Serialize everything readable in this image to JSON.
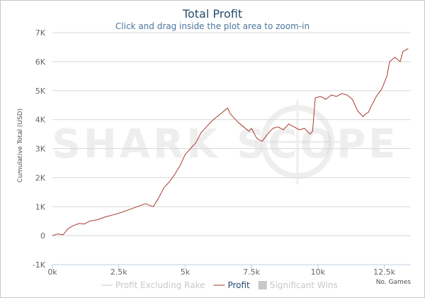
{
  "chart_data": {
    "type": "line",
    "title": "Total Profit",
    "subtitle": "Click and drag inside the plot area to zoom-in",
    "xlabel": "No. Games",
    "ylabel": "Cumulative Total (USD)",
    "watermark": "SHARK SCOPE",
    "xlim": [
      0,
      13500
    ],
    "ylim": [
      -1000,
      7000
    ],
    "x_ticks": [
      0,
      2500,
      5000,
      7500,
      10000,
      12500
    ],
    "x_tick_labels": [
      "0k",
      "2.5k",
      "5k",
      "7.5k",
      "10k",
      "12.5k"
    ],
    "y_ticks": [
      -1000,
      0,
      1000,
      2000,
      3000,
      4000,
      5000,
      6000,
      7000
    ],
    "y_tick_labels": [
      "-1K",
      "0",
      "1K",
      "2K",
      "3K",
      "4K",
      "5K",
      "6K",
      "7K"
    ],
    "grid": true,
    "legend": "bottom",
    "legend_items": [
      {
        "label": "Profit Excluding Rake",
        "color": "#c8c8c8",
        "active": false,
        "kind": "line"
      },
      {
        "label": "Profit",
        "color": "#274b6d",
        "line_color": "#a83a2e",
        "active": true,
        "kind": "line"
      },
      {
        "label": "Significant Wins",
        "color": "#c8c8c8",
        "active": false,
        "kind": "box"
      }
    ],
    "series": [
      {
        "name": "Profit",
        "color": "#a83a2e",
        "x": [
          0,
          200,
          400,
          600,
          800,
          1000,
          1200,
          1400,
          1700,
          2000,
          2300,
          2600,
          2900,
          3200,
          3500,
          3800,
          4000,
          4200,
          4400,
          4600,
          4800,
          5000,
          5200,
          5400,
          5600,
          5800,
          6000,
          6200,
          6400,
          6600,
          6700,
          6900,
          7000,
          7200,
          7400,
          7500,
          7700,
          7900,
          8100,
          8300,
          8500,
          8700,
          8900,
          9100,
          9300,
          9500,
          9700,
          9800,
          9900,
          10100,
          10300,
          10500,
          10700,
          10900,
          11100,
          11300,
          11500,
          11700,
          11800,
          11900,
          12000,
          12200,
          12400,
          12600,
          12700,
          12900,
          13100,
          13200,
          13400
        ],
        "y": [
          0,
          60,
          30,
          250,
          350,
          420,
          400,
          500,
          550,
          650,
          720,
          800,
          900,
          1000,
          1100,
          1000,
          1300,
          1650,
          1850,
          2100,
          2400,
          2800,
          3000,
          3200,
          3550,
          3750,
          3950,
          4100,
          4250,
          4400,
          4200,
          4000,
          3900,
          3750,
          3600,
          3700,
          3350,
          3250,
          3500,
          3700,
          3750,
          3650,
          3850,
          3750,
          3650,
          3700,
          3500,
          3600,
          4750,
          4800,
          4700,
          4850,
          4800,
          4900,
          4850,
          4700,
          4300,
          4100,
          4200,
          4250,
          4450,
          4800,
          5050,
          5500,
          6000,
          6150,
          6000,
          6350,
          6450
        ]
      }
    ]
  }
}
